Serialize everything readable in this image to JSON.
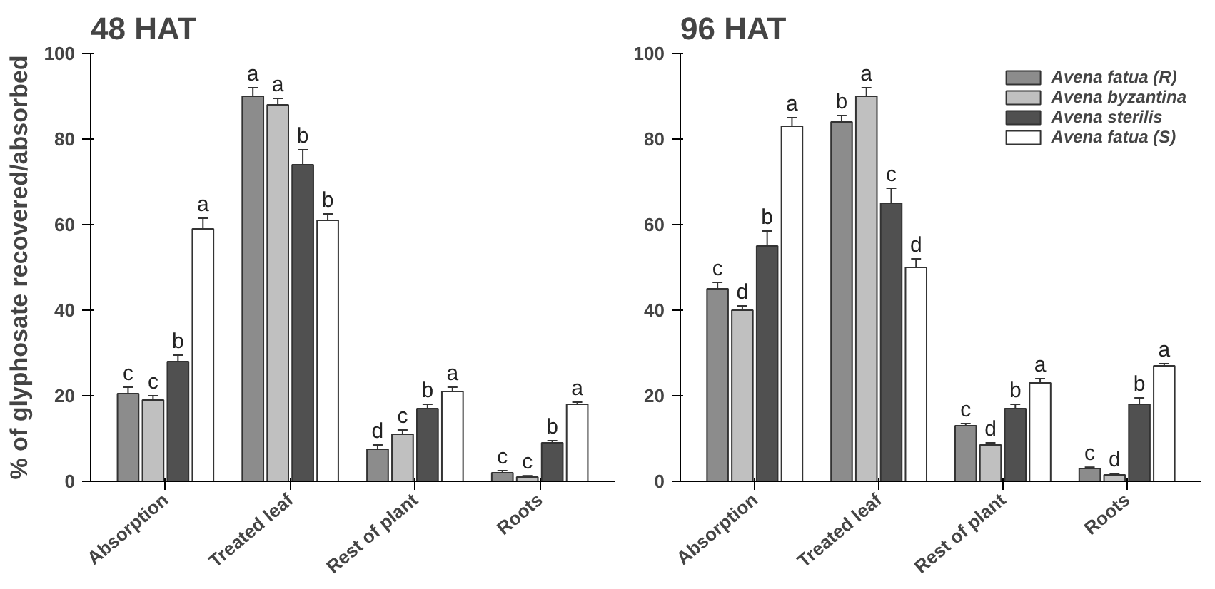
{
  "chart_data": [
    {
      "type": "bar",
      "title": "48 HAT",
      "ylabel": "% of glyphosate recovered/absorbed",
      "categories": [
        "Absorption",
        "Treated leaf",
        "Rest of plant",
        "Roots"
      ],
      "ylim": [
        0,
        100
      ],
      "yticks": [
        0,
        20,
        40,
        60,
        80,
        100
      ],
      "grid": false,
      "series": [
        {
          "color": "#8c8c8c",
          "values": [
            20.5,
            90,
            7.5,
            2
          ],
          "errors": [
            1.5,
            2,
            1,
            0.5
          ],
          "value_labels": [
            "c",
            "a",
            "d",
            "c"
          ]
        },
        {
          "color": "#c0c0c0",
          "values": [
            19,
            88,
            11,
            1
          ],
          "errors": [
            1,
            1.5,
            1,
            0.3
          ],
          "value_labels": [
            "c",
            "a",
            "c",
            "c"
          ]
        },
        {
          "color": "#505050",
          "values": [
            28,
            74,
            17,
            9
          ],
          "errors": [
            1.5,
            3.5,
            1,
            0.5
          ],
          "value_labels": [
            "b",
            "b",
            "b",
            "b"
          ]
        },
        {
          "color": "#ffffff",
          "values": [
            59,
            61,
            21,
            18
          ],
          "errors": [
            2.5,
            1.5,
            1,
            0.5
          ],
          "value_labels": [
            "a",
            "b",
            "a",
            "a"
          ]
        }
      ]
    },
    {
      "type": "bar",
      "title": "96 HAT",
      "categories": [
        "Absorption",
        "Treated leaf",
        "Rest of plant",
        "Roots"
      ],
      "ylim": [
        0,
        100
      ],
      "yticks": [
        0,
        20,
        40,
        60,
        80,
        100
      ],
      "grid": false,
      "legend": "top right",
      "series": [
        {
          "name": "Avena fatua (R)",
          "color": "#8c8c8c",
          "values": [
            45,
            84,
            13,
            3
          ],
          "errors": [
            1.5,
            1.5,
            0.5,
            0.3
          ],
          "value_labels": [
            "c",
            "b",
            "c",
            "c"
          ]
        },
        {
          "name": "Avena byzantina",
          "color": "#c0c0c0",
          "values": [
            40,
            90,
            8.5,
            1.5
          ],
          "errors": [
            1,
            2,
            0.5,
            0.3
          ],
          "value_labels": [
            "d",
            "a",
            "d",
            "d"
          ]
        },
        {
          "name": "Avena sterilis",
          "color": "#505050",
          "values": [
            55,
            65,
            17,
            18
          ],
          "errors": [
            3.5,
            3.5,
            1,
            1.5
          ],
          "value_labels": [
            "b",
            "c",
            "b",
            "b"
          ]
        },
        {
          "name": "Avena fatua (S)",
          "color": "#ffffff",
          "values": [
            83,
            50,
            23,
            27
          ],
          "errors": [
            2,
            2,
            1,
            0.5
          ],
          "value_labels": [
            "a",
            "d",
            "a",
            "a"
          ]
        }
      ]
    }
  ]
}
